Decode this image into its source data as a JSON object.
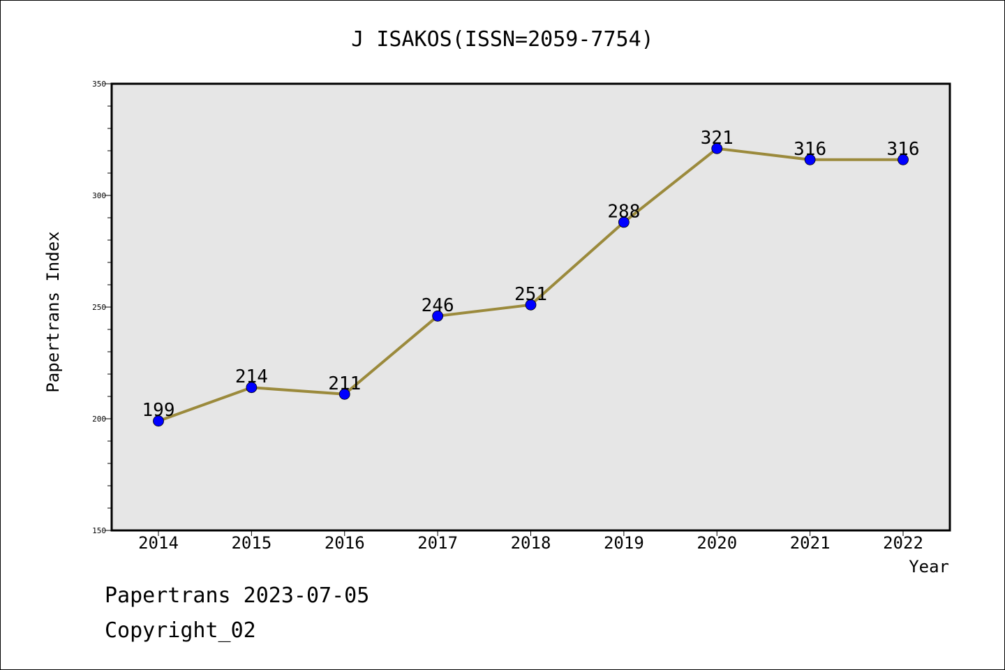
{
  "chart_data": {
    "type": "line",
    "title": "J ISAKOS(ISSN=2059-7754)",
    "xlabel": "Year",
    "ylabel": "Papertrans Index",
    "x": [
      "2014",
      "2015",
      "2016",
      "2017",
      "2018",
      "2019",
      "2020",
      "2021",
      "2022"
    ],
    "series": [
      {
        "values": [
          199,
          214,
          211,
          246,
          251,
          288,
          321,
          316,
          316
        ]
      }
    ],
    "ylim": [
      150,
      350
    ],
    "yticks": [
      "150",
      "200",
      "250",
      "300",
      "350"
    ],
    "grid": false,
    "plot_background": "#e6e6e6",
    "line_color": "#9b8a3c",
    "marker_color": "#0000ff"
  },
  "footer": {
    "line1": "Papertrans 2023-07-05",
    "line2": "Copyright_02"
  }
}
